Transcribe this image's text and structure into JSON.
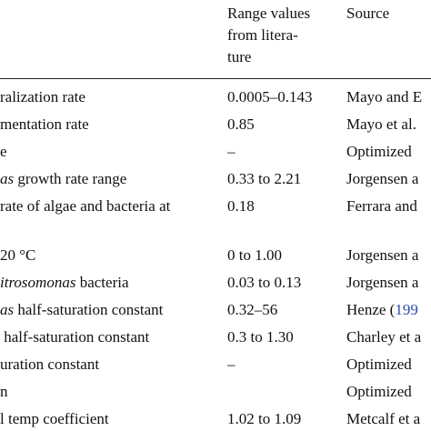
{
  "table": {
    "header": {
      "range": [
        "Range values",
        "from litera-",
        "ture"
      ],
      "source": "Source"
    },
    "rows": [
      {
        "label": "ralization rate",
        "range": "0.0005–0.143",
        "source": "Mayo and E"
      },
      {
        "label": "mentation rate",
        "range": "0.85",
        "source": "Mayo et al."
      },
      {
        "label": "e",
        "range": "–",
        "source": "Optimized"
      },
      {
        "label_italic": "as",
        "label": " growth rate range",
        "range": "0.33 to 2.21",
        "source": "Jorgensen a"
      },
      {
        "label": "rate of algae and bacteria at",
        "range": "0.18",
        "source": "Ferrara and"
      },
      {
        "label": "20 °C",
        "range": "0 to 1.00",
        "source": "Jorgensen a"
      },
      {
        "label_italic": "itrosomonas",
        "label": " bacteria",
        "range": "0.03 to 0.13",
        "source": "Jorgensen a"
      },
      {
        "label_italic": "as",
        "label": " half-saturation constant",
        "range": "0.32–56",
        "source": "Henze (",
        "source_link": "199"
      },
      {
        "label": " half-saturation constant",
        "range": "0.3 to 1.30",
        "source": "Charley et a"
      },
      {
        "label": "uration constant",
        "range": "–",
        "source": "Optimized"
      },
      {
        "label": "n",
        "source": "Optimized"
      },
      {
        "label": "l temp coefficient",
        "range": "1.02 to 1.09",
        "source": "Metcalf et a"
      }
    ]
  }
}
